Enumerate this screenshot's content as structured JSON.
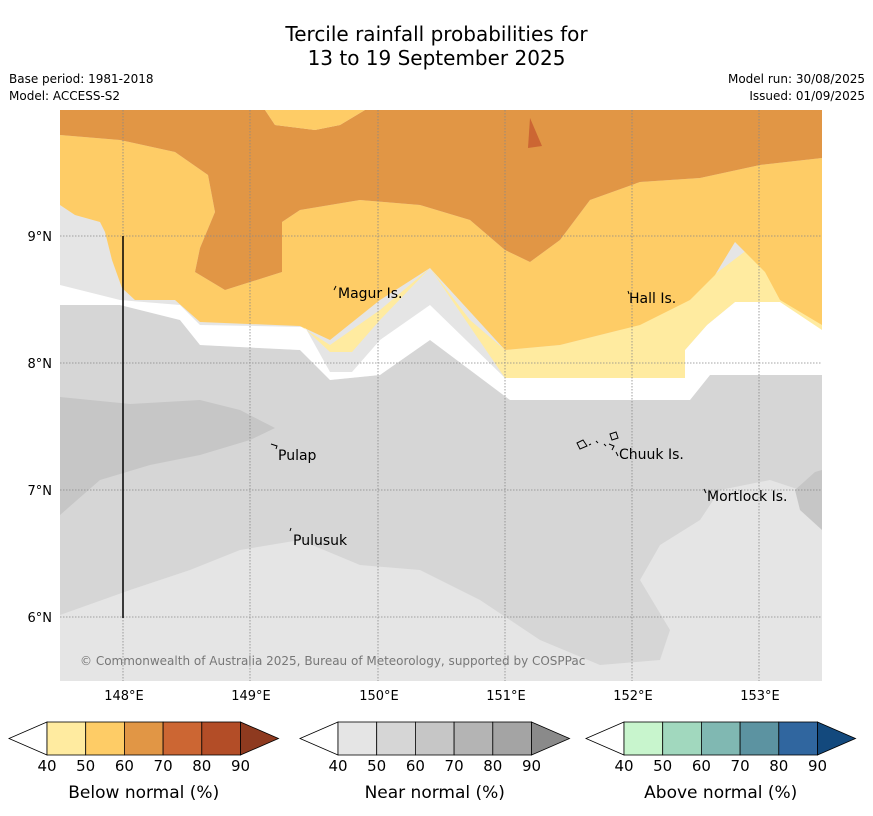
{
  "title": {
    "line1": "Tercile rainfall probabilities for",
    "line2": "13 to 19 September 2025"
  },
  "meta": {
    "base_period": "Base period: 1981-2018",
    "model": "Model: ACCESS-S2",
    "model_run": "Model run: 30/08/2025",
    "issued": "Issued: 01/09/2025"
  },
  "map": {
    "lat_labels": [
      "9°N",
      "8°N",
      "7°N",
      "6°N"
    ],
    "lon_labels": [
      "148°E",
      "149°E",
      "150°E",
      "151°E",
      "152°E",
      "153°E"
    ],
    "places": [
      "Magur Is.",
      "Hall Is.",
      "Pulap",
      "Chuuk Is.",
      "Mortlock Is.",
      "Pulusuk"
    ],
    "copyright": "© Commonwealth of Australia 2025, Bureau of Meteorology, supported by COSPPac",
    "colors": {
      "below_50": "#ffeba0",
      "below_60": "#fecc66",
      "below_70": "#e19645",
      "below_80": "#cc6633",
      "near_40": "#e5e5e5",
      "near_50": "#d6d6d6",
      "near_60": "#c6c6c6"
    }
  },
  "colorbars": [
    {
      "label": "Below normal (%)",
      "ticks": [
        "40",
        "50",
        "60",
        "70",
        "80",
        "90"
      ],
      "colors": [
        "#ffffff",
        "#ffeba0",
        "#fecc66",
        "#e19645",
        "#cc6633",
        "#b34d27",
        "#8e3a1f"
      ]
    },
    {
      "label": "Near normal (%)",
      "ticks": [
        "40",
        "50",
        "60",
        "70",
        "80",
        "90"
      ],
      "colors": [
        "#ffffff",
        "#e5e5e5",
        "#d6d6d6",
        "#c6c6c6",
        "#b4b4b4",
        "#a4a4a4",
        "#8a8a8a"
      ]
    },
    {
      "label": "Above normal (%)",
      "ticks": [
        "40",
        "50",
        "60",
        "70",
        "80",
        "90"
      ],
      "colors": [
        "#ffffff",
        "#c8f5cd",
        "#a1d8be",
        "#80b8b2",
        "#5c93a1",
        "#30669f",
        "#13497d"
      ]
    }
  ]
}
